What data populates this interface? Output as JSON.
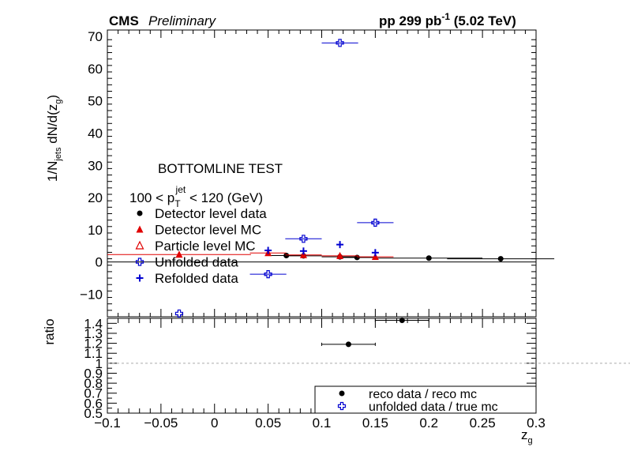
{
  "header": {
    "cms": "CMS",
    "preliminary": "Preliminary",
    "lumi_prefix": "pp 299 pb",
    "lumi_exp": "-1",
    "lumi_suffix": " (5.02 TeV)"
  },
  "annotations": {
    "test_label": "BOTTOMLINE TEST",
    "pt_prefix": "100 < p",
    "pt_sub": "T",
    "pt_sup": "jet",
    "pt_suffix": " < 120 (GeV)"
  },
  "chart_data": [
    {
      "type": "scatter",
      "panel": "main",
      "ylabel": "1/N_jets dN/d(z_g)",
      "ylim": [
        -17,
        72
      ],
      "xlim": [
        -0.1,
        0.3
      ],
      "yticks": [
        -10,
        0,
        10,
        20,
        30,
        40,
        50,
        60,
        70
      ],
      "legend": {
        "placement": "left",
        "entries": [
          {
            "label": "Detector level data",
            "marker": "filled-circle",
            "color": "#000000"
          },
          {
            "label": "Detector level MC",
            "marker": "filled-triangle",
            "color": "#e00000"
          },
          {
            "label": "Particle level MC",
            "marker": "open-triangle",
            "color": "#e00000"
          },
          {
            "label": "Unfolded data",
            "marker": "open-cross",
            "color": "#0000d0"
          },
          {
            "label": "Refolded data",
            "marker": "cross",
            "color": "#0000d0"
          }
        ]
      },
      "series": [
        {
          "name": "Detector level data",
          "color": "#000000",
          "points": [
            {
              "x": 0.067,
              "y": 2.0,
              "xerr": 0.017
            },
            {
              "x": 0.083,
              "y": 1.9,
              "xerr": 0.017
            },
            {
              "x": 0.117,
              "y": 1.6,
              "xerr": 0.017
            },
            {
              "x": 0.133,
              "y": 1.4,
              "xerr": 0.017
            },
            {
              "x": 0.2,
              "y": 1.2,
              "xerr": 0.05
            },
            {
              "x": 0.267,
              "y": 1.0,
              "xerr": 0.05
            }
          ]
        },
        {
          "name": "Detector level MC",
          "color": "#e00000",
          "points": [
            {
              "x": -0.033,
              "y": 2.3,
              "xerr": 0.067
            },
            {
              "x": 0.05,
              "y": 2.8,
              "xerr": 0.017
            },
            {
              "x": 0.083,
              "y": 2.2,
              "xerr": 0.017
            },
            {
              "x": 0.117,
              "y": 1.9,
              "xerr": 0.017
            },
            {
              "x": 0.15,
              "y": 1.6,
              "xerr": 0.017
            }
          ]
        },
        {
          "name": "Unfolded data",
          "color": "#0000d0",
          "points": [
            {
              "x": -0.033,
              "y": -16.0,
              "xerr": 0.0
            },
            {
              "x": 0.05,
              "y": -3.8,
              "xerr": 0.017
            },
            {
              "x": 0.083,
              "y": 7.2,
              "xerr": 0.017
            },
            {
              "x": 0.117,
              "y": 68.0,
              "xerr": 0.017
            },
            {
              "x": 0.15,
              "y": 12.2,
              "xerr": 0.017
            }
          ]
        },
        {
          "name": "Refolded data",
          "color": "#0000d0",
          "points": [
            {
              "x": 0.05,
              "y": 3.6
            },
            {
              "x": 0.083,
              "y": 3.4
            },
            {
              "x": 0.117,
              "y": 5.4
            },
            {
              "x": 0.15,
              "y": 2.9
            }
          ]
        }
      ]
    },
    {
      "type": "scatter",
      "panel": "ratio",
      "ylabel": "ratio",
      "xlabel": "z_g",
      "xlim": [
        -0.1,
        0.3
      ],
      "ylim": [
        0.5,
        1.45
      ],
      "reference_line": 1.0,
      "xticks": [
        "−0.1",
        "−0.05",
        "0",
        "0.05",
        "0.1",
        "0.15",
        "0.2",
        "0.25",
        "0.3"
      ],
      "yticks": [
        "0.5",
        "0.6",
        "0.7",
        "0.8",
        "0.9",
        "1",
        "1.1",
        "1.2",
        "1.3",
        "1.4"
      ],
      "legend": {
        "placement": "bottom-right",
        "entries": [
          {
            "label": "reco data / reco mc",
            "marker": "filled-circle",
            "color": "#000000"
          },
          {
            "label": "unfolded data / true mc",
            "marker": "open-cross",
            "color": "#0000d0"
          }
        ]
      },
      "series": [
        {
          "name": "reco data / reco mc",
          "color": "#000000",
          "points": [
            {
              "x": 0.125,
              "y": 1.19,
              "xerr": 0.025
            },
            {
              "x": 0.175,
              "y": 1.43,
              "xerr": 0.025
            }
          ]
        }
      ]
    }
  ]
}
